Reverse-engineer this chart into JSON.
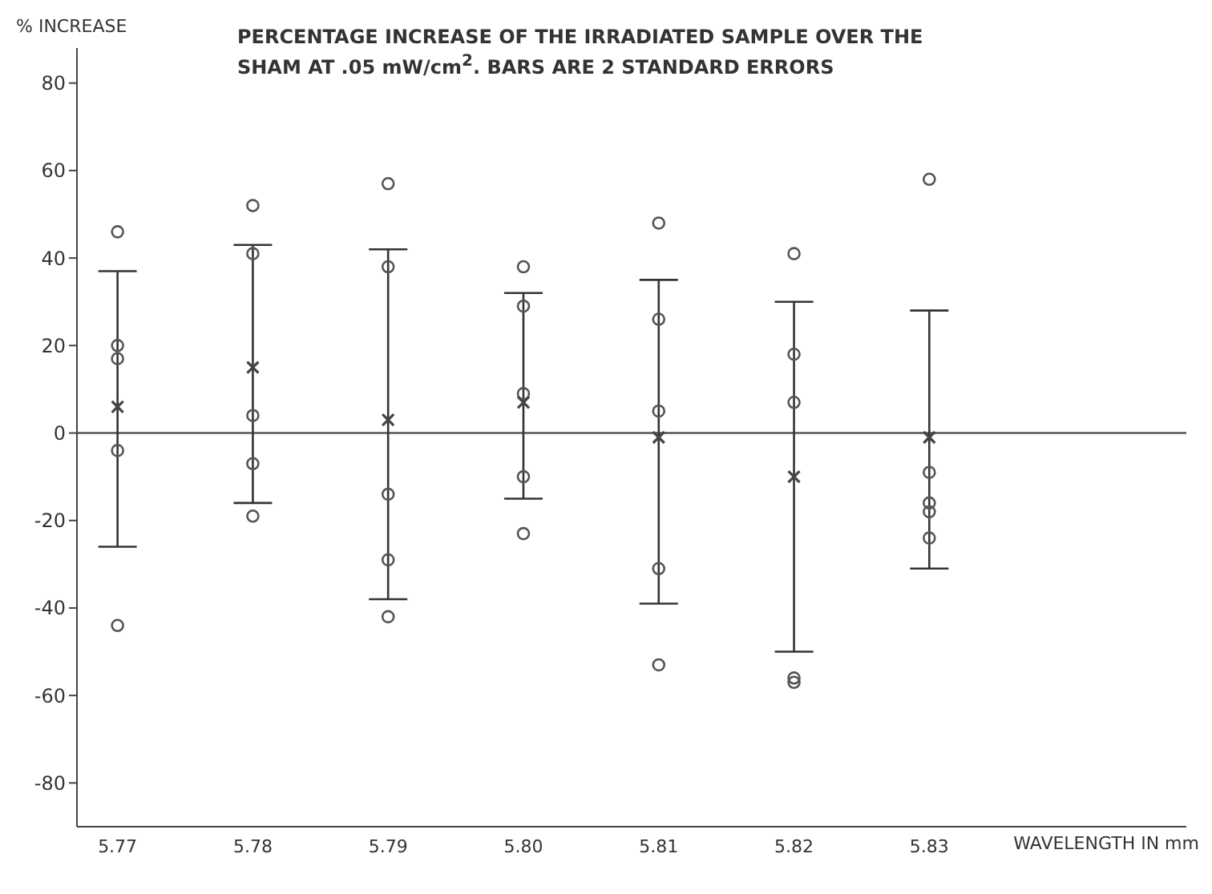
{
  "chart_data": {
    "type": "scatter",
    "title": "PERCENTAGE INCREASE OF THE IRRADIATED SAMPLE OVER THE\nSHAM AT .05 mW/cm$^{2}$.  BARS ARE 2 STANDARD ERRORS",
    "ylabel": "% INCREASE",
    "xlabel": "WAVELENGTH IN mm",
    "xlim": [
      5.767,
      5.849
    ],
    "xticks": [
      {
        "value": 5.77,
        "label": "5.77"
      },
      {
        "value": 5.78,
        "label": "5.78"
      },
      {
        "value": 5.79,
        "label": "5.79"
      },
      {
        "value": 5.8,
        "label": "5.80"
      },
      {
        "value": 5.81,
        "label": "5.81"
      },
      {
        "value": 5.82,
        "label": "5.82"
      },
      {
        "value": 5.83,
        "label": "5.83"
      }
    ],
    "ylim": [
      -90,
      88
    ],
    "yticks": [
      -80,
      -60,
      -40,
      -20,
      0,
      20,
      40,
      60,
      80
    ],
    "legend": false,
    "ref_lines": [
      {
        "axis": "y",
        "value": 0,
        "color": "#555555"
      }
    ],
    "series": [
      {
        "marker": "circle",
        "color": "#555555",
        "x": [
          5.77,
          5.77,
          5.77,
          5.77,
          5.77,
          5.78,
          5.78,
          5.78,
          5.78,
          5.78,
          5.79,
          5.79,
          5.79,
          5.79,
          5.79,
          5.8,
          5.8,
          5.8,
          5.8,
          5.8,
          5.81,
          5.81,
          5.81,
          5.81,
          5.81,
          5.82,
          5.82,
          5.82,
          5.82,
          5.82,
          5.83,
          5.83,
          5.83,
          5.83,
          5.83
        ],
        "values": [
          46,
          20,
          17,
          -4,
          -44,
          52,
          41,
          4,
          -7,
          -19,
          57,
          38,
          -14,
          -29,
          -42,
          38,
          29,
          9,
          -10,
          -23,
          48,
          26,
          5,
          -31,
          -53,
          41,
          18,
          7,
          -56,
          -57,
          58,
          -9,
          -16,
          -18,
          -24
        ]
      },
      {
        "marker": "cross",
        "color": "#444444",
        "x": [
          5.77,
          5.78,
          5.79,
          5.8,
          5.81,
          5.82,
          5.83
        ],
        "values": [
          6,
          15,
          3,
          7,
          -1,
          -10,
          -1
        ],
        "errors": [
          [
            -26,
            37
          ],
          [
            -16,
            43
          ],
          [
            -38,
            42
          ],
          [
            -15,
            32
          ],
          [
            -39,
            35
          ],
          [
            -50,
            30
          ],
          [
            -31,
            28
          ]
        ]
      }
    ]
  }
}
